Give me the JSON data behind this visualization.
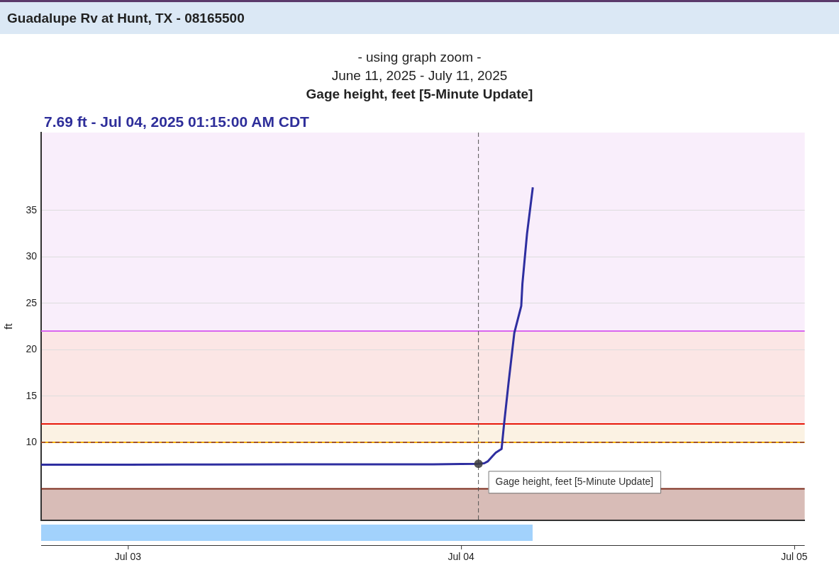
{
  "chart_data": {
    "type": "line",
    "title": "Guadalupe Rv at Hunt, TX - 08165500",
    "subtitle": "- using graph zoom -\nJune 11, 2025 - July 11, 2025",
    "annotations": [
      "Gage height, feet [5-Minute Update]",
      "7.69 ft - Jul 04, 2025 01:15:00 AM CDT"
    ],
    "ylabel": "ft",
    "x": [
      "2025-07-02T17:45",
      "2025-07-03T00:00",
      "2025-07-03T06:00",
      "2025-07-03T12:00",
      "2025-07-03T18:00",
      "2025-07-03T22:00",
      "2025-07-04T00:00",
      "2025-07-04T01:15",
      "2025-07-04T01:40",
      "2025-07-04T01:55",
      "2025-07-04T02:15",
      "2025-07-04T02:30",
      "2025-07-04T02:55",
      "2025-07-04T03:05",
      "2025-07-04T03:25",
      "2025-07-04T03:50",
      "2025-07-04T04:20",
      "2025-07-04T04:25",
      "2025-07-04T04:45",
      "2025-07-04T05:10"
    ],
    "series": [
      {
        "name": "Gage height, feet [5-Minute Update]",
        "color": "#2e2ea0",
        "values": [
          7.6,
          7.6,
          7.62,
          7.63,
          7.63,
          7.63,
          7.68,
          7.69,
          7.75,
          7.95,
          8.5,
          8.9,
          9.3,
          11.8,
          16.4,
          21.8,
          24.7,
          27.1,
          32.5,
          37.5
        ]
      }
    ],
    "xlim": [
      "2025-07-02T17:45",
      "2025-07-05T00:45"
    ],
    "xticks": [
      {
        "value": "2025-07-03",
        "label": "Jul 03"
      },
      {
        "value": "2025-07-04",
        "label": "Jul 04"
      },
      {
        "value": "2025-07-05",
        "label": "Jul 05"
      }
    ],
    "ylim": [
      1.6,
      43.4
    ],
    "yticks": [
      10,
      15,
      20,
      25,
      30,
      35
    ],
    "grid": "y",
    "legend": false,
    "marker": "none",
    "line_style": "solid",
    "bands": [
      {
        "axis": "y",
        "from": 1.6,
        "to": 5,
        "color": "#d8bcb7"
      },
      {
        "axis": "y",
        "from": 10,
        "to": 12,
        "color": "#fbf2e3"
      },
      {
        "axis": "y",
        "from": 12,
        "to": 22,
        "color": "#fbe6e5"
      },
      {
        "axis": "y",
        "from": 22,
        "to": 43.4,
        "color": "#f9eefb"
      }
    ],
    "ref_lines": [
      {
        "axis": "y",
        "value": 5,
        "color": "#7b2a1a",
        "line_style": "solid"
      },
      {
        "axis": "y",
        "value": 10,
        "color": "#f5b400",
        "line_style": "solid"
      },
      {
        "axis": "y",
        "value": 10,
        "color": "#a0522d",
        "line_style": "dashed"
      },
      {
        "axis": "y",
        "value": 12,
        "color": "#e8190c",
        "line_style": "solid"
      },
      {
        "axis": "y",
        "value": 22,
        "color": "#d966f0",
        "line_style": "solid"
      },
      {
        "axis": "x",
        "value": "2025-07-04T01:15",
        "color": "#555555",
        "line_style": "dashed"
      }
    ]
  }
}
